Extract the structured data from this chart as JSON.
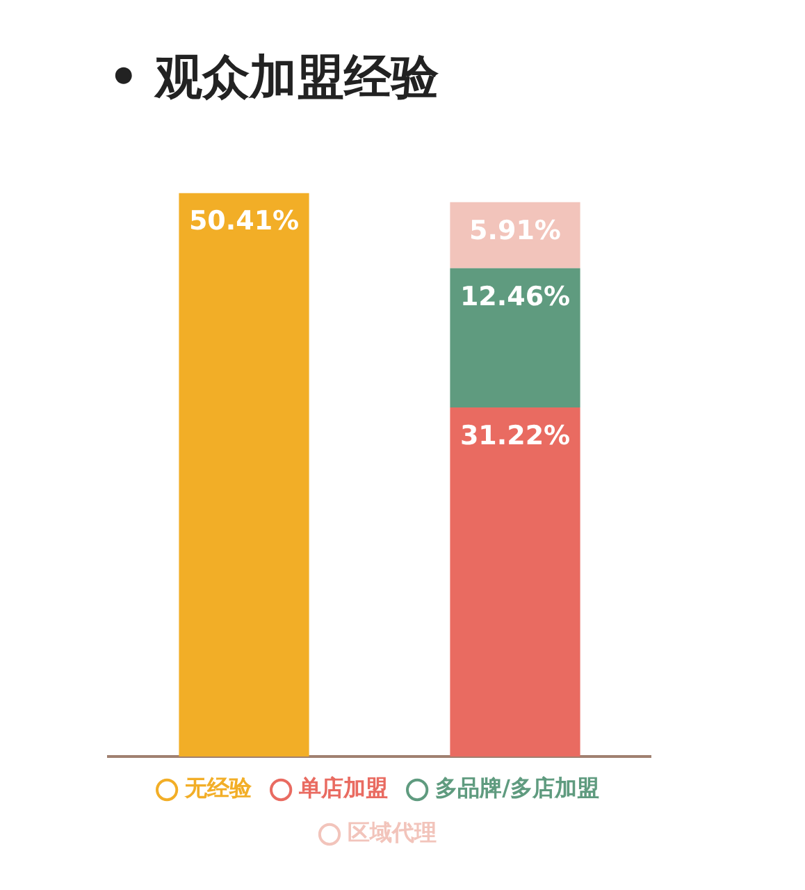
{
  "chart_data": {
    "type": "bar",
    "title": "• 观众加盟经验",
    "categories": [
      null,
      null
    ],
    "stacked": true,
    "legend": "bottom",
    "grid": false,
    "series": [
      {
        "name": "无经验",
        "color": "#f2ae27",
        "values": [
          50.41,
          null
        ],
        "value_labels": [
          "50.41%",
          null
        ]
      },
      {
        "name": "单店加盟",
        "color": "#e96b61",
        "values": [
          null,
          31.22
        ],
        "value_labels": [
          null,
          "31.22%"
        ]
      },
      {
        "name": "多品牌/多店加盟",
        "color": "#5f9b7f",
        "values": [
          null,
          12.46
        ],
        "value_labels": [
          null,
          "12.46%"
        ]
      },
      {
        "name": "区域代理",
        "color": "#f2c4bb",
        "values": [
          null,
          5.91
        ],
        "value_labels": [
          null,
          "5.91%"
        ]
      }
    ]
  }
}
